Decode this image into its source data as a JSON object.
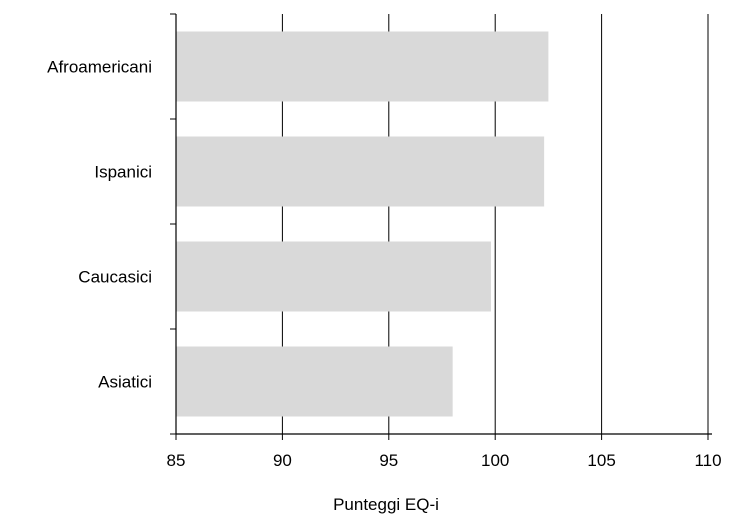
{
  "chart_data": {
    "type": "bar",
    "orientation": "horizontal",
    "categories": [
      "Afroamericani",
      "Ispanici",
      "Caucasici",
      "Asiatici"
    ],
    "values": [
      102.5,
      102.3,
      99.8,
      98.0
    ],
    "xlabel": "Punteggi EQ-i",
    "ylabel": "",
    "xlim": [
      85,
      110
    ],
    "xticks": [
      "85",
      "90",
      "95",
      "100",
      "105",
      "110"
    ],
    "grid": "vertical",
    "bar_color": "#d9d9d9"
  }
}
